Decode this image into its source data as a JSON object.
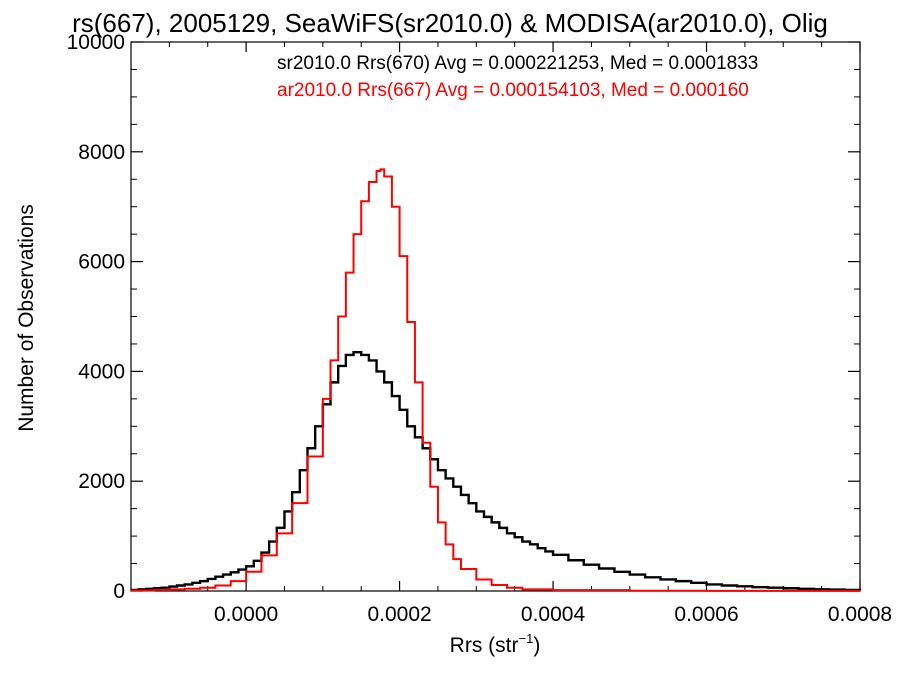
{
  "chart_data": {
    "type": "line",
    "title": "rs(667), 2005129, SeaWiFS(sr2010.0) & MODISA(ar2010.0), Olig",
    "xlabel": "Rrs (str",
    "xlabel_sup": "−1",
    "xlabel_close": ")",
    "ylabel": "Number of Observations",
    "xlim": [
      -0.00015,
      0.0008
    ],
    "ylim": [
      0,
      10000
    ],
    "x_ticks": [
      0.0,
      0.0002,
      0.0004,
      0.0006,
      0.0008
    ],
    "x_tick_labels": [
      "0.0000",
      "0.0002",
      "0.0004",
      "0.0006",
      "0.0008"
    ],
    "y_ticks": [
      0,
      2000,
      4000,
      6000,
      8000,
      10000
    ],
    "y_tick_labels": [
      "0",
      "2000",
      "4000",
      "6000",
      "8000",
      "10000"
    ],
    "grid": false,
    "step_histogram": true,
    "series": [
      {
        "name": "sr2010.0 Rrs(670) Avg = 0.000221253, Med = 0.0001833",
        "color": "#000000",
        "x": [
          -0.00015,
          -0.00014,
          -0.00013,
          -0.00012,
          -0.00011,
          -0.0001,
          -9e-05,
          -8e-05,
          -7e-05,
          -6e-05,
          -5e-05,
          -4e-05,
          -3e-05,
          -2e-05,
          -1e-05,
          0.0,
          1e-05,
          2e-05,
          3e-05,
          4e-05,
          5e-05,
          6e-05,
          7e-05,
          8e-05,
          9e-05,
          0.0001,
          0.00011,
          0.00012,
          0.00013,
          0.00014,
          0.00015,
          0.00016,
          0.00017,
          0.00018,
          0.00019,
          0.0002,
          0.00021,
          0.00022,
          0.00023,
          0.00024,
          0.00025,
          0.00026,
          0.00027,
          0.00028,
          0.00029,
          0.0003,
          0.00031,
          0.00032,
          0.00033,
          0.00034,
          0.00035,
          0.00036,
          0.00037,
          0.00038,
          0.00039,
          0.0004,
          0.00042,
          0.00044,
          0.00046,
          0.00048,
          0.0005,
          0.00052,
          0.00054,
          0.00056,
          0.00058,
          0.0006,
          0.00062,
          0.00064,
          0.00066,
          0.00068,
          0.0007,
          0.00072,
          0.00074,
          0.00076,
          0.00078,
          0.0008
        ],
        "values": [
          20,
          30,
          40,
          50,
          60,
          80,
          100,
          120,
          150,
          180,
          220,
          260,
          300,
          340,
          390,
          450,
          550,
          700,
          900,
          1150,
          1450,
          1800,
          2200,
          2600,
          3000,
          3400,
          3800,
          4100,
          4300,
          4350,
          4300,
          4200,
          4000,
          3800,
          3550,
          3300,
          3000,
          2800,
          2600,
          2400,
          2200,
          2050,
          1900,
          1750,
          1600,
          1450,
          1350,
          1250,
          1150,
          1050,
          980,
          900,
          850,
          780,
          720,
          660,
          560,
          480,
          410,
          350,
          300,
          250,
          210,
          180,
          150,
          120,
          100,
          85,
          70,
          60,
          50,
          40,
          30,
          25,
          20,
          15
        ]
      },
      {
        "name": "ar2010.0 Rrs(667) Avg = 0.000154103, Med = 0.000160",
        "color": "#ff0000",
        "x": [
          -0.00015,
          -0.00012,
          -0.0001,
          -8e-05,
          -6e-05,
          -4e-05,
          -2e-05,
          0.0,
          2e-05,
          4e-05,
          6e-05,
          8e-05,
          0.0001,
          0.00011,
          0.00012,
          0.00013,
          0.00014,
          0.00015,
          0.00016,
          0.00017,
          0.000175,
          0.00018,
          0.00019,
          0.0002,
          0.00021,
          0.00022,
          0.00023,
          0.00024,
          0.00025,
          0.00026,
          0.00027,
          0.00028,
          0.0003,
          0.00032,
          0.00034,
          0.00036,
          0.0004,
          0.0005,
          0.0006,
          0.0008
        ],
        "values": [
          10,
          20,
          30,
          40,
          60,
          100,
          180,
          350,
          650,
          1050,
          1600,
          2450,
          3500,
          4200,
          5000,
          5800,
          6500,
          7100,
          7450,
          7650,
          7680,
          7550,
          7000,
          6100,
          4900,
          3800,
          2700,
          1900,
          1250,
          850,
          580,
          400,
          210,
          110,
          60,
          30,
          15,
          5,
          2,
          1
        ]
      }
    ]
  }
}
